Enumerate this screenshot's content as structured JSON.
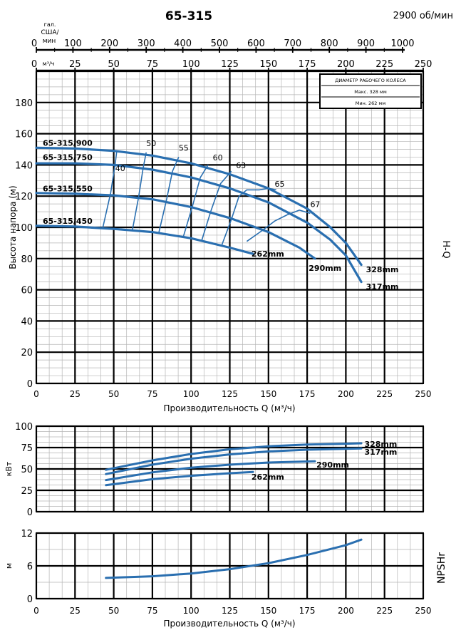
{
  "header": {
    "model": "65-315",
    "speed": "2900 об/мин"
  },
  "top_scales": {
    "usgpm_unit_line1": "гал.",
    "usgpm_unit_line2": "США/",
    "usgpm_unit_line3": "мин",
    "usgpm_ticks": [
      0,
      100,
      200,
      300,
      400,
      500,
      600,
      700,
      800,
      900,
      1000
    ],
    "m3h_unit": "м³/ч",
    "m3h_ticks": [
      0,
      25,
      50,
      75,
      100,
      125,
      150,
      175,
      200,
      225,
      250
    ]
  },
  "legend_box": {
    "title": "ДИАМЕТР РАБОЧЕГО КОЛЕСА",
    "max": "Макс. 328 мм",
    "min": "Мин. 262 мм"
  },
  "side_labels": {
    "hq": "H-Q",
    "npsh": "NPSHr"
  },
  "chart_data": [
    {
      "type": "line",
      "id": "head",
      "xlabel": "Производительность Q (м³/ч)",
      "ylabel": "Высота напора (м)",
      "xlim": [
        0,
        250
      ],
      "ylim": [
        0,
        200
      ],
      "x_ticks": [
        0,
        25,
        50,
        75,
        100,
        125,
        150,
        175,
        200,
        225,
        250
      ],
      "y_ticks": [
        0,
        20,
        40,
        60,
        80,
        100,
        120,
        140,
        160,
        180
      ],
      "grid": true,
      "series": [
        {
          "name": "328mm",
          "x": [
            0,
            25,
            50,
            75,
            100,
            125,
            150,
            175,
            190,
            200,
            210
          ],
          "y": [
            151,
            150.5,
            149,
            146,
            141,
            134,
            125,
            112,
            100,
            90,
            76
          ]
        },
        {
          "name": "317mm",
          "x": [
            0,
            25,
            50,
            75,
            100,
            125,
            150,
            175,
            190,
            200,
            210
          ],
          "y": [
            141,
            141,
            140,
            137,
            132,
            125,
            116,
            103,
            92,
            82,
            65
          ]
        },
        {
          "name": "290mm",
          "x": [
            0,
            25,
            50,
            75,
            100,
            125,
            150,
            170,
            180
          ],
          "y": [
            122,
            121.5,
            120.5,
            118,
            113,
            106,
            97,
            87,
            80
          ]
        },
        {
          "name": "262mm",
          "x": [
            0,
            25,
            50,
            75,
            100,
            125,
            140
          ],
          "y": [
            101,
            100.5,
            99,
            97,
            93,
            87,
            83
          ]
        }
      ],
      "curve_labels": [
        {
          "text": "65-315/900",
          "y": 154
        },
        {
          "text": "65-315/750",
          "y": 145
        },
        {
          "text": "65-315/550",
          "y": 125
        },
        {
          "text": "65-315/450",
          "y": 104
        }
      ],
      "efficiency_labels": [
        {
          "text": "40",
          "x": 51,
          "y": 136
        },
        {
          "text": "50",
          "x": 71,
          "y": 152
        },
        {
          "text": "55",
          "x": 92,
          "y": 149
        },
        {
          "text": "60",
          "x": 114,
          "y": 143
        },
        {
          "text": "63",
          "x": 129,
          "y": 138
        },
        {
          "text": "65",
          "x": 154,
          "y": 126
        },
        {
          "text": "67",
          "x": 177,
          "y": 113
        }
      ],
      "efficiency_lines": [
        [
          [
            43,
            100
          ],
          [
            48,
            122
          ],
          [
            51,
            141
          ],
          [
            52,
            149
          ]
        ],
        [
          [
            62,
            98
          ],
          [
            66,
            119
          ],
          [
            69,
            138
          ],
          [
            71,
            148
          ]
        ],
        [
          [
            79,
            96
          ],
          [
            84,
            117
          ],
          [
            88,
            136
          ],
          [
            92,
            145
          ]
        ],
        [
          [
            95,
            94
          ],
          [
            101,
            114
          ],
          [
            106,
            132
          ],
          [
            111,
            140
          ]
        ],
        [
          [
            107,
            92
          ],
          [
            113,
            111
          ],
          [
            119,
            128
          ],
          [
            126,
            136
          ]
        ],
        [
          [
            120,
            89
          ],
          [
            126,
            105
          ],
          [
            131,
            120
          ],
          [
            136,
            124
          ],
          [
            144,
            124
          ],
          [
            150,
            125
          ],
          [
            155,
            124
          ]
        ],
        [
          [
            136,
            91
          ],
          [
            146,
            98
          ],
          [
            154,
            104
          ],
          [
            162,
            108
          ],
          [
            170,
            111
          ],
          [
            177,
            109
          ]
        ]
      ],
      "end_labels": [
        {
          "text": "328mm",
          "x": 213,
          "y": 73
        },
        {
          "text": "317mm",
          "x": 213,
          "y": 62
        },
        {
          "text": "290mm",
          "x": 176,
          "y": 74
        },
        {
          "text": "262mm",
          "x": 139,
          "y": 83
        }
      ]
    },
    {
      "type": "line",
      "id": "power",
      "xlabel": "",
      "ylabel": "кВт",
      "xlim": [
        0,
        250
      ],
      "ylim": [
        0,
        100
      ],
      "y_ticks": [
        0,
        25,
        50,
        75,
        100
      ],
      "grid": true,
      "series": [
        {
          "name": "328mm",
          "x": [
            45,
            75,
            100,
            125,
            150,
            175,
            200,
            210
          ],
          "y": [
            49,
            60,
            67.5,
            73,
            76.5,
            78.5,
            79.5,
            80
          ]
        },
        {
          "name": "317mm",
          "x": [
            45,
            75,
            100,
            125,
            150,
            175,
            200,
            210
          ],
          "y": [
            44,
            55,
            62,
            67,
            70.5,
            72.5,
            73.5,
            74
          ]
        },
        {
          "name": "290mm",
          "x": [
            45,
            75,
            100,
            125,
            150,
            180
          ],
          "y": [
            37,
            46,
            51.5,
            55,
            57.5,
            59
          ]
        },
        {
          "name": "262mm",
          "x": [
            45,
            75,
            100,
            125,
            140
          ],
          "y": [
            31,
            38,
            42,
            45,
            46.5
          ]
        }
      ],
      "end_labels": [
        {
          "text": "328mm",
          "x": 212,
          "y": 79
        },
        {
          "text": "317mm",
          "x": 212,
          "y": 70
        },
        {
          "text": "290mm",
          "x": 181,
          "y": 55
        },
        {
          "text": "262mm",
          "x": 139,
          "y": 41
        }
      ]
    },
    {
      "type": "line",
      "id": "npsh",
      "xlabel": "Производительность Q (м³/ч)",
      "ylabel": "м",
      "xlim": [
        0,
        250
      ],
      "ylim": [
        0,
        12
      ],
      "x_ticks": [
        0,
        25,
        50,
        75,
        100,
        125,
        150,
        175,
        200,
        225,
        250
      ],
      "y_ticks": [
        0,
        6,
        12
      ],
      "grid": true,
      "series": [
        {
          "name": "",
          "x": [
            45,
            75,
            100,
            125,
            150,
            175,
            200,
            210
          ],
          "y": [
            3.8,
            4.1,
            4.6,
            5.4,
            6.5,
            8.0,
            9.8,
            10.8
          ]
        }
      ]
    }
  ]
}
